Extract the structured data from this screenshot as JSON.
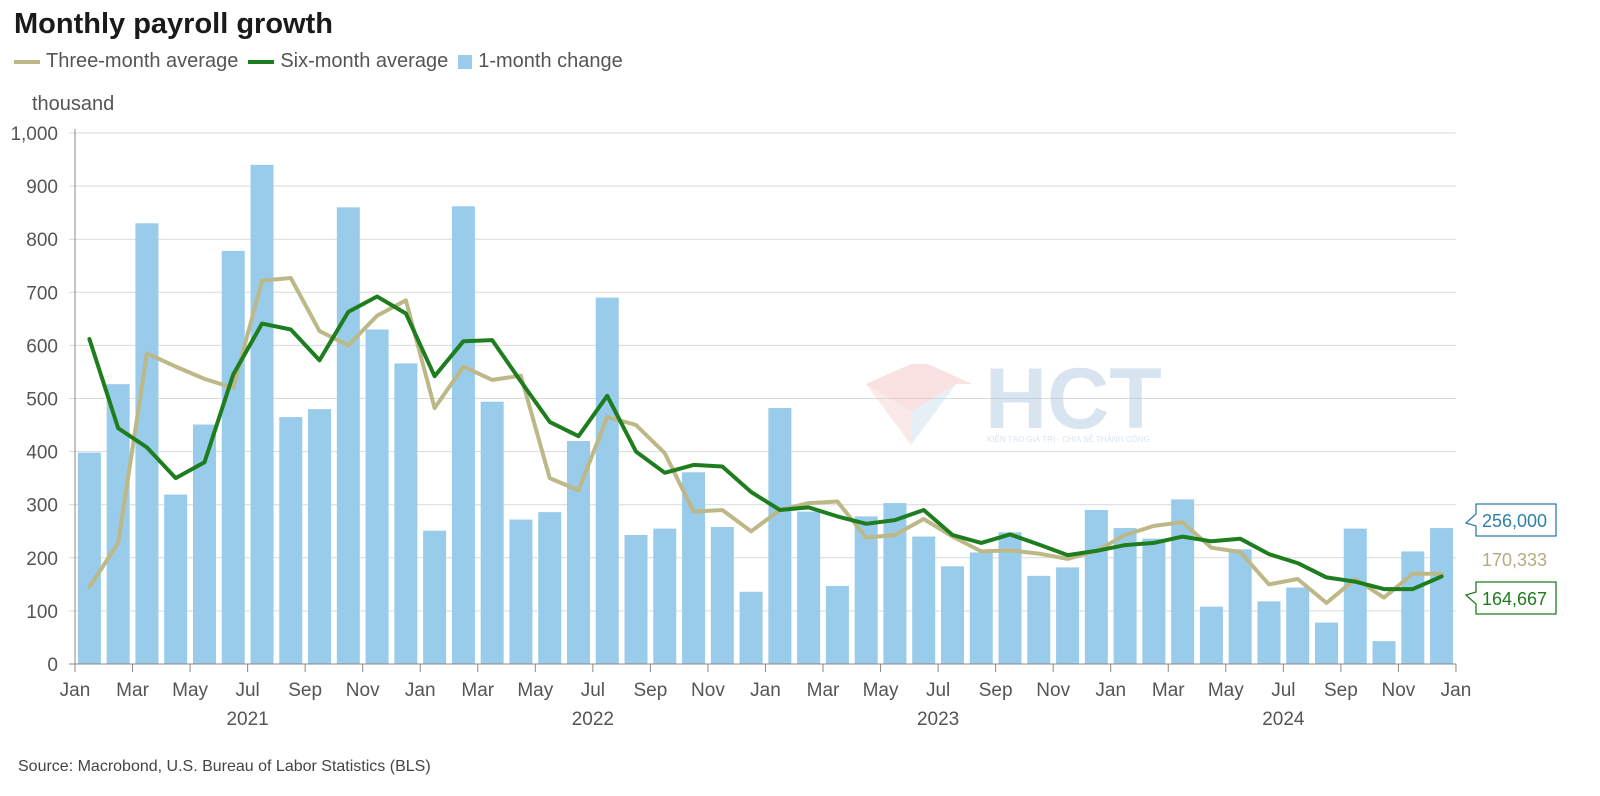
{
  "title": "Monthly payroll growth",
  "source": "Source: Macrobond, U.S. Bureau of Labor Statistics (BLS)",
  "watermark": {
    "logo_text": "HCT",
    "tagline": "KIẾN TẠO GIÁ TRỊ - CHIA SẺ THÀNH CÔNG"
  },
  "colors": {
    "bar": "#99CBEB",
    "three_month": "#BDB888",
    "six_month": "#1E7D1E",
    "grid": "#D9D9D9",
    "axis_text": "#555555",
    "callout_bar": "#2E7FA8",
    "callout_three": "#B2AD7E",
    "callout_six": "#1E7D1E"
  },
  "chart_data": {
    "type": "bar",
    "ylabel": "thousand",
    "ylim": [
      0,
      1000
    ],
    "yticks": [
      0,
      100,
      200,
      300,
      400,
      500,
      600,
      700,
      800,
      900,
      1000
    ],
    "ytick_labels": [
      "0",
      "100",
      "200",
      "300",
      "400",
      "500",
      "600",
      "700",
      "800",
      "900",
      "1,000"
    ],
    "x_month_labels": [
      "Jan",
      "Mar",
      "May",
      "Jul",
      "Sep",
      "Nov",
      "Jan",
      "Mar",
      "May",
      "Jul",
      "Sep",
      "Nov",
      "Jan",
      "Mar",
      "May",
      "Jul",
      "Sep",
      "Nov",
      "Jan",
      "Mar",
      "May",
      "Jul",
      "Sep",
      "Nov",
      "Jan"
    ],
    "x_year_labels": [
      "2021",
      "2022",
      "2023",
      "2024"
    ],
    "grid": true,
    "legend_position": "top-left",
    "categories": [
      "2021-01",
      "2021-02",
      "2021-03",
      "2021-04",
      "2021-05",
      "2021-06",
      "2021-07",
      "2021-08",
      "2021-09",
      "2021-10",
      "2021-11",
      "2021-12",
      "2022-01",
      "2022-02",
      "2022-03",
      "2022-04",
      "2022-05",
      "2022-06",
      "2022-07",
      "2022-08",
      "2022-09",
      "2022-10",
      "2022-11",
      "2022-12",
      "2023-01",
      "2023-02",
      "2023-03",
      "2023-04",
      "2023-05",
      "2023-06",
      "2023-07",
      "2023-08",
      "2023-09",
      "2023-10",
      "2023-11",
      "2023-12",
      "2024-01",
      "2024-02",
      "2024-03",
      "2024-04",
      "2024-05",
      "2024-06",
      "2024-07",
      "2024-08",
      "2024-09",
      "2024-10",
      "2024-11",
      "2024-12"
    ],
    "series": [
      {
        "name": "Three-month average",
        "kind": "line",
        "values": [
          145,
          228,
          585,
          560,
          537,
          520,
          722,
          727,
          627,
          600,
          656,
          685,
          482,
          560,
          535,
          543,
          350,
          327,
          465,
          450,
          397,
          287,
          290,
          250,
          290,
          303,
          306,
          238,
          243,
          273,
          240,
          212,
          214,
          208,
          198,
          213,
          243,
          260,
          267,
          219,
          211,
          150,
          160,
          115,
          160,
          125,
          170,
          170
        ]
      },
      {
        "name": "Six-month average",
        "kind": "line",
        "values": [
          612,
          444,
          408,
          350,
          380,
          545,
          641,
          630,
          572,
          663,
          692,
          660,
          542,
          608,
          610,
          532,
          456,
          429,
          505,
          400,
          360,
          375,
          372,
          324,
          290,
          295,
          278,
          264,
          271,
          290,
          243,
          228,
          244,
          225,
          205,
          213,
          224,
          228,
          240,
          231,
          236,
          207,
          190,
          163,
          155,
          141,
          141,
          165
        ]
      },
      {
        "name": "1-month change",
        "kind": "bar",
        "values": [
          398,
          527,
          830,
          319,
          451,
          778,
          940,
          465,
          480,
          860,
          630,
          566,
          251,
          862,
          494,
          272,
          286,
          420,
          690,
          243,
          255,
          361,
          258,
          136,
          482,
          287,
          147,
          278,
          303,
          240,
          184,
          210,
          248,
          166,
          182,
          290,
          256,
          236,
          310,
          108,
          216,
          118,
          144,
          78,
          255,
          43,
          212,
          256
        ]
      }
    ],
    "end_labels": {
      "bar": "256,000",
      "three_month": "170,333",
      "six_month": "164,667"
    }
  }
}
